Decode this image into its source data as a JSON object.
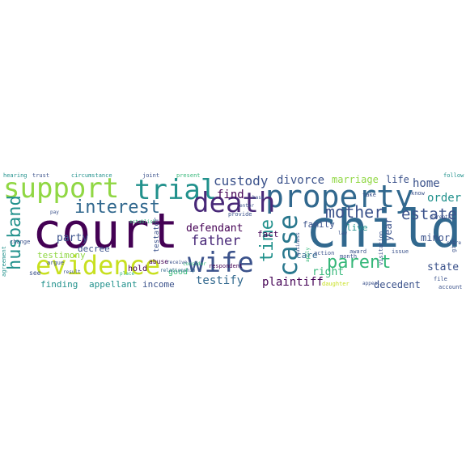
{
  "cloud": {
    "palette": {
      "purple": "#440154",
      "indigo": "#3b528b",
      "blue": "#31688e",
      "teal": "#21918c",
      "green": "#35b779",
      "lime": "#90d743",
      "yellow": "#c8e020",
      "dark_teal": "#2a788e",
      "violet": "#482878"
    },
    "words": [
      {
        "text": "child",
        "color": "#31688e"
      },
      {
        "text": "court",
        "color": "#440154"
      },
      {
        "text": "support",
        "color": "#90d743"
      },
      {
        "text": "trial",
        "color": "#21918c"
      },
      {
        "text": "property",
        "color": "#31688e"
      },
      {
        "text": "death",
        "color": "#482878"
      },
      {
        "text": "evidence",
        "color": "#c8e020"
      },
      {
        "text": "wife",
        "color": "#3b528b"
      },
      {
        "text": "case",
        "color": "#2a788e"
      },
      {
        "text": "interest",
        "color": "#31688e"
      },
      {
        "text": "husband",
        "color": "#21918c"
      },
      {
        "text": "parent",
        "color": "#35b779"
      },
      {
        "text": "mother",
        "color": "#3b528b"
      },
      {
        "text": "father",
        "color": "#482878"
      },
      {
        "text": "estate",
        "color": "#3b528b"
      },
      {
        "text": "time",
        "color": "#21918c"
      },
      {
        "text": "custody",
        "color": "#3b528b"
      },
      {
        "text": "divorce",
        "color": "#3b528b"
      },
      {
        "text": "marriage",
        "color": "#90d743"
      },
      {
        "text": "life",
        "color": "#3b528b"
      },
      {
        "text": "home",
        "color": "#3b528b"
      },
      {
        "text": "order",
        "color": "#21918c"
      },
      {
        "text": "find",
        "color": "#440154"
      },
      {
        "text": "defendant",
        "color": "#440154"
      },
      {
        "text": "party",
        "color": "#3b528b"
      },
      {
        "text": "decree",
        "color": "#3b528b"
      },
      {
        "text": "testify",
        "color": "#31688e"
      },
      {
        "text": "plaintiff",
        "color": "#440154"
      },
      {
        "text": "decedent",
        "color": "#3b528b"
      },
      {
        "text": "state",
        "color": "#3b528b"
      },
      {
        "text": "right",
        "color": "#35b779"
      },
      {
        "text": "family",
        "color": "#3b528b"
      },
      {
        "text": "year",
        "color": "#3b528b"
      },
      {
        "text": "minor",
        "color": "#3b528b"
      },
      {
        "text": "live",
        "color": "#21918c"
      },
      {
        "text": "fact",
        "color": "#440154"
      },
      {
        "text": "care",
        "color": "#31688e"
      },
      {
        "text": "testimony",
        "color": "#90d743"
      },
      {
        "text": "finding",
        "color": "#21918c"
      },
      {
        "text": "appellant",
        "color": "#21918c"
      },
      {
        "text": "income",
        "color": "#3b528b"
      },
      {
        "text": "hold",
        "color": "#440154"
      },
      {
        "text": "good",
        "color": "#35b779"
      },
      {
        "text": "testator",
        "color": "#3b528b"
      },
      {
        "text": "abuse",
        "color": "#440154"
      },
      {
        "text": "hearing",
        "color": "#21918c"
      },
      {
        "text": "trust",
        "color": "#3b528b"
      },
      {
        "text": "circumstance",
        "color": "#21918c"
      },
      {
        "text": "joint",
        "color": "#3b528b"
      },
      {
        "text": "present",
        "color": "#35b779"
      },
      {
        "text": "follow",
        "color": "#21918c"
      },
      {
        "text": "change",
        "color": "#3b528b"
      },
      {
        "text": "agreement",
        "color": "#21918c"
      },
      {
        "text": "see",
        "color": "#3b528b"
      },
      {
        "text": "provide",
        "color": "#3b528b"
      },
      {
        "text": "respondent",
        "color": "#440154"
      },
      {
        "text": "relationship",
        "color": "#31688e"
      },
      {
        "text": "issue",
        "color": "#3b528b"
      },
      {
        "text": "action",
        "color": "#3b528b"
      },
      {
        "text": "month",
        "color": "#3b528b"
      },
      {
        "text": "award",
        "color": "#3b528b"
      },
      {
        "text": "visitation",
        "color": "#3b528b"
      },
      {
        "text": "file",
        "color": "#3b528b"
      },
      {
        "text": "give",
        "color": "#3b528b"
      },
      {
        "text": "account",
        "color": "#3b528b"
      },
      {
        "text": "appeal",
        "color": "#3b528b"
      },
      {
        "text": "daughter",
        "color": "#c8e020"
      },
      {
        "text": "take",
        "color": "#3b528b"
      },
      {
        "text": "know",
        "color": "#3b528b"
      },
      {
        "text": "base",
        "color": "#3b528b"
      },
      {
        "text": "argue",
        "color": "#3b528b"
      },
      {
        "text": "place",
        "color": "#35b779"
      },
      {
        "text": "establish",
        "color": "#35b779"
      },
      {
        "text": "receive",
        "color": "#3b528b"
      },
      {
        "text": "consider",
        "color": "#35b779"
      },
      {
        "text": "business",
        "color": "#3b528b"
      },
      {
        "text": "apply",
        "color": "#35b779"
      },
      {
        "text": "share",
        "color": "#3b528b"
      },
      {
        "text": "parental",
        "color": "#3b528b"
      },
      {
        "text": "result",
        "color": "#3b528b"
      },
      {
        "text": "pay",
        "color": "#3b528b"
      },
      {
        "text": "law",
        "color": "#3b528b"
      },
      {
        "text": "enter",
        "color": "#3b528b"
      }
    ]
  }
}
